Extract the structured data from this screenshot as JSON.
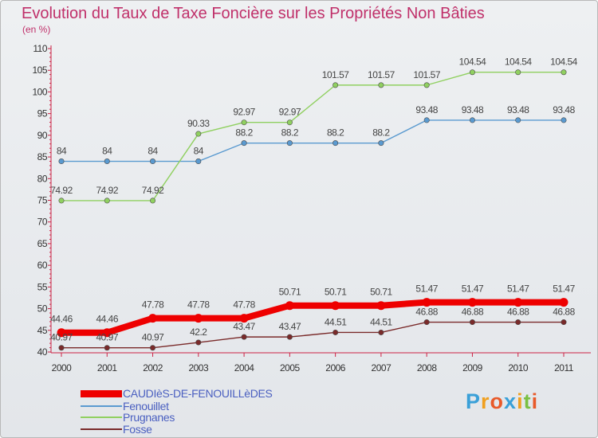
{
  "header": {
    "title": "Evolution du Taux de Taxe Foncière sur les Propriétés Non Bâties",
    "subtitle": "(en %)"
  },
  "logo": {
    "letters": [
      "P",
      "r",
      "o",
      "x",
      "i",
      "t",
      "i"
    ],
    "colors": [
      "#3aa0d8",
      "#f0a020",
      "#e85a2a",
      "#3aa0d8",
      "#f0a020",
      "#7ac043",
      "#e85a2a"
    ]
  },
  "chart_data": {
    "type": "line",
    "title": "Evolution du Taux de Taxe Foncière sur les Propriétés Non Bâties",
    "ylabel": "(en %)",
    "x": [
      "2000",
      "2001",
      "2002",
      "2003",
      "2004",
      "2005",
      "2006",
      "2007",
      "2008",
      "2009",
      "2010",
      "2011"
    ],
    "ylim": [
      40,
      110
    ],
    "yticks": [
      40,
      45,
      50,
      55,
      60,
      65,
      70,
      75,
      80,
      85,
      90,
      95,
      100,
      105,
      110
    ],
    "grid": false,
    "legend": "bottom-left",
    "series": [
      {
        "name": "CAUDIèS-DE-FENOUILLèDES",
        "color": "#ee0000",
        "style": "thick",
        "values": [
          44.46,
          44.46,
          47.78,
          47.78,
          47.78,
          50.71,
          50.71,
          50.71,
          51.47,
          51.47,
          51.47,
          51.47
        ],
        "labels": [
          "44.46",
          "44.46",
          "47.78",
          "47.78",
          "47.78",
          "50.71",
          "50.71",
          "50.71",
          "51.47",
          "51.47",
          "51.47",
          "51.47"
        ]
      },
      {
        "name": "Fenouillet",
        "color": "#5a9ad0",
        "style": "thin",
        "values": [
          84,
          84,
          84,
          84,
          88.2,
          88.2,
          88.2,
          88.2,
          93.48,
          93.48,
          93.48,
          93.48
        ],
        "labels": [
          "84",
          "84",
          "84",
          "84",
          "88.2",
          "88.2",
          "88.2",
          "88.2",
          "93.48",
          "93.48",
          "93.48",
          "93.48"
        ]
      },
      {
        "name": "Prugnanes",
        "color": "#90d060",
        "style": "thin",
        "values": [
          74.92,
          74.92,
          74.92,
          90.33,
          92.97,
          92.97,
          101.57,
          101.57,
          101.57,
          104.54,
          104.54,
          104.54
        ],
        "labels": [
          "74.92",
          "74.92",
          "74.92",
          "90.33",
          "92.97",
          "92.97",
          "101.57",
          "101.57",
          "101.57",
          "104.54",
          "104.54",
          "104.54"
        ]
      },
      {
        "name": "Fosse",
        "color": "#7a2a2a",
        "style": "thin",
        "values": [
          40.97,
          40.97,
          40.97,
          42.2,
          43.47,
          43.47,
          44.51,
          44.51,
          46.88,
          46.88,
          46.88,
          46.88
        ],
        "labels": [
          "40.97",
          "40.97",
          "40.97",
          "42.2",
          "43.47",
          "43.47",
          "44.51",
          "44.51",
          "46.88",
          "46.88",
          "46.88",
          "46.88"
        ]
      }
    ]
  }
}
